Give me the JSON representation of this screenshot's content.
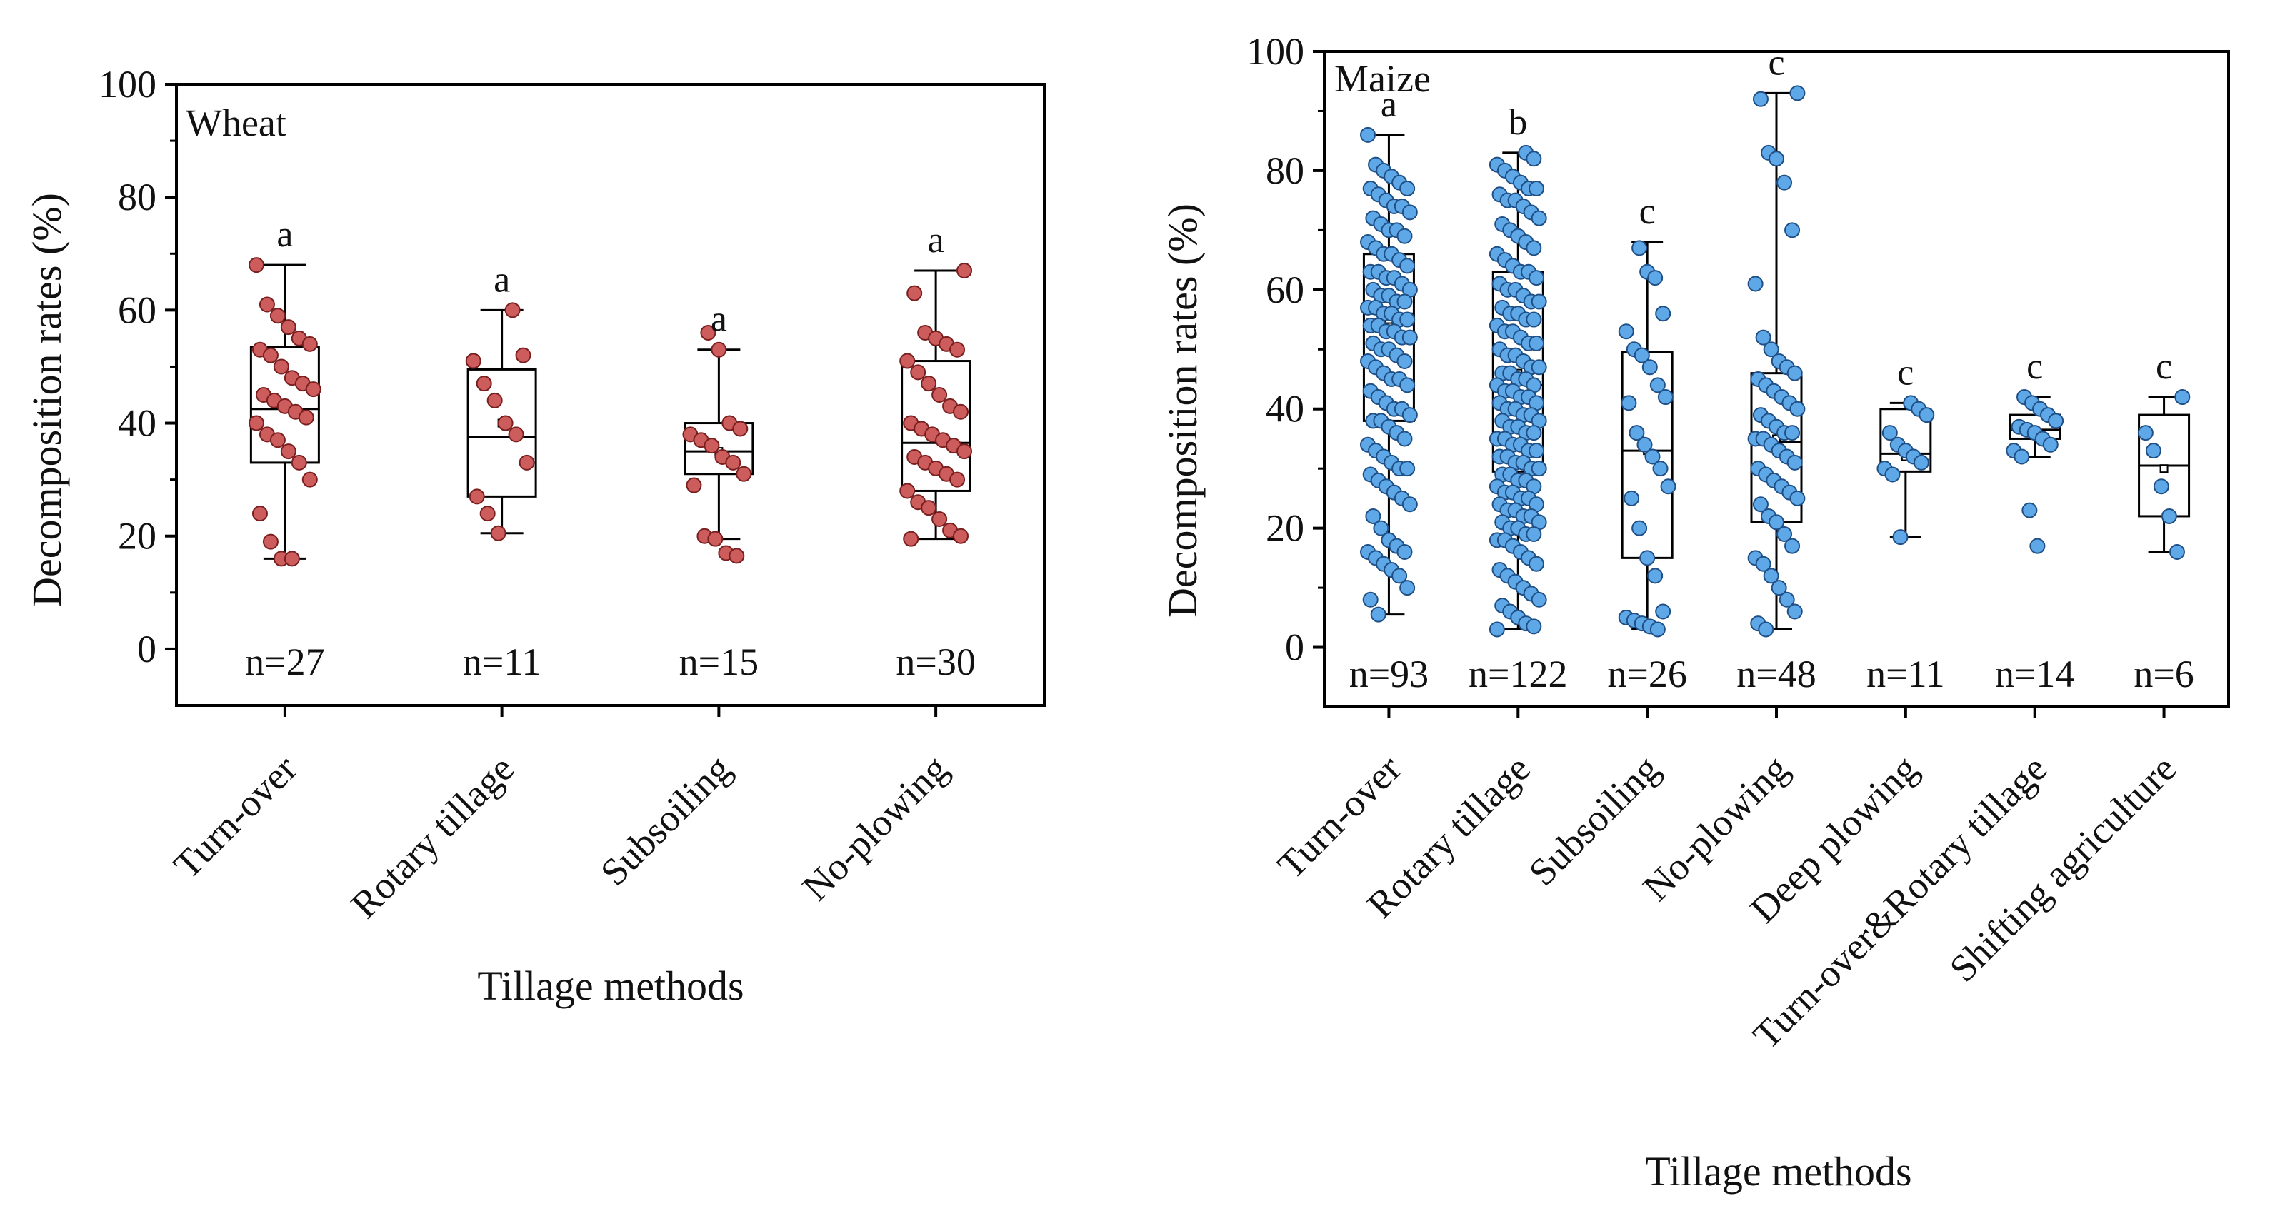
{
  "figure": {
    "colors": {
      "wheat_fill": "#cd5c5c",
      "wheat_stroke": "#7a1f1f",
      "maize_fill": "#5ea8e8",
      "maize_stroke": "#1f4f85",
      "xtitle": "#e02020",
      "frame": "#000000"
    }
  },
  "chart_data": [
    {
      "type": "box",
      "panel_label": "Wheat",
      "ylabel": "Decomposition rates (%)",
      "xlabel": "Tillage methods",
      "ylim": [
        -10,
        100
      ],
      "yticks": [
        0,
        20,
        40,
        60,
        80,
        100
      ],
      "categories": [
        "Turn-over",
        "Rotary tillage",
        "Subsoiling",
        "No-plowing"
      ],
      "boxes": [
        {
          "q1": 33,
          "median": 42.5,
          "q3": 53.5,
          "mean": 43,
          "whisker_low": 16,
          "whisker_high": 68,
          "letter": "a",
          "n_label": "n=27",
          "points": [
            68,
            61,
            59,
            57,
            55,
            54,
            53,
            52,
            50,
            48,
            47,
            46,
            45,
            44,
            43,
            42,
            41,
            40,
            38,
            37,
            35,
            33,
            30,
            24,
            19,
            16,
            16
          ]
        },
        {
          "q1": 27,
          "median": 37.5,
          "q3": 49.5,
          "mean": 40,
          "whisker_low": 20.5,
          "whisker_high": 60,
          "letter": "a",
          "n_label": "n=11",
          "points": [
            60,
            52,
            51,
            47,
            44,
            40,
            38,
            33,
            27,
            24,
            20.5
          ]
        },
        {
          "q1": 31,
          "median": 35,
          "q3": 40,
          "mean": 35,
          "whisker_low": 19.5,
          "whisker_high": 53,
          "letter": "a",
          "n_label": "n=15",
          "points": [
            56,
            53,
            40,
            39,
            38,
            37,
            36,
            34,
            33,
            31,
            29,
            20,
            19.5,
            17,
            16.5
          ]
        },
        {
          "q1": 28,
          "median": 36.5,
          "q3": 51,
          "mean": 37.5,
          "whisker_low": 19.5,
          "whisker_high": 67,
          "letter": "a",
          "n_label": "n=30",
          "points": [
            67,
            63,
            56,
            55,
            54,
            53,
            51,
            49,
            47,
            45,
            43,
            42,
            40,
            39,
            38,
            37,
            36,
            35,
            34,
            33,
            32,
            31,
            30,
            28,
            26,
            25,
            23,
            21,
            20,
            19.5
          ]
        }
      ]
    },
    {
      "type": "box",
      "panel_label": "Maize",
      "ylabel": "Decomposition rates (%)",
      "xlabel": "Tillage methods",
      "ylim": [
        -10,
        100
      ],
      "yticks": [
        0,
        20,
        40,
        60,
        80,
        100
      ],
      "categories": [
        "Turn-over",
        "Rotary tillage",
        "Subsoiling",
        "No-plowing",
        "Deep plowing",
        "Turn-over&Rotary tillage",
        "Shifting agriculture"
      ],
      "boxes": [
        {
          "q1": 38,
          "median": 56,
          "q3": 66,
          "mean": 55,
          "whisker_low": 5.5,
          "whisker_high": 86,
          "letter": "a",
          "n_label": "n=93",
          "points": [
            86,
            81,
            80,
            79,
            78,
            77,
            77,
            76,
            75,
            74,
            74,
            73,
            72,
            71,
            70,
            70,
            69,
            68,
            67,
            66,
            66,
            65,
            64,
            63,
            63,
            62,
            62,
            61,
            60,
            60,
            59,
            59,
            58,
            58,
            57,
            57,
            56,
            56,
            55,
            55,
            54,
            54,
            53,
            53,
            52,
            52,
            51,
            50,
            50,
            49,
            48,
            48,
            47,
            46,
            45,
            45,
            44,
            43,
            42,
            41,
            40,
            40,
            39,
            38,
            38,
            37,
            36,
            35,
            34,
            33,
            32,
            31,
            30,
            30,
            29,
            28,
            27,
            26,
            25,
            24,
            22,
            20,
            18,
            17,
            16,
            16,
            15,
            14,
            13,
            12,
            10,
            8,
            5.5
          ]
        },
        {
          "q1": 29.5,
          "median": 44,
          "q3": 63,
          "mean": 46,
          "whisker_low": 3,
          "whisker_high": 83,
          "letter": "b",
          "n_label": "n=122",
          "points": [
            83,
            82,
            81,
            80,
            79,
            78,
            77,
            77,
            76,
            75,
            75,
            74,
            73,
            72,
            71,
            70,
            69,
            68,
            67,
            66,
            65,
            64,
            63,
            63,
            62,
            61,
            60,
            60,
            59,
            58,
            58,
            57,
            56,
            56,
            55,
            55,
            54,
            53,
            53,
            52,
            51,
            51,
            50,
            49,
            49,
            48,
            47,
            47,
            46,
            46,
            45,
            45,
            44,
            44,
            43,
            43,
            42,
            42,
            41,
            41,
            40,
            40,
            39,
            39,
            38,
            38,
            37,
            37,
            36,
            36,
            35,
            35,
            34,
            34,
            33,
            33,
            32,
            32,
            31,
            31,
            30,
            30,
            29,
            29,
            28,
            28,
            27,
            27,
            26,
            26,
            25,
            25,
            24,
            24,
            23,
            23,
            22,
            22,
            21,
            21,
            20,
            20,
            19,
            19,
            18,
            18,
            17,
            16,
            15,
            14,
            13,
            12,
            11,
            10,
            9,
            8,
            7,
            6,
            5,
            4,
            3.5,
            3
          ]
        },
        {
          "q1": 15,
          "median": 33,
          "q3": 49.5,
          "mean": 33,
          "whisker_low": 3,
          "whisker_high": 68,
          "letter": "c",
          "n_label": "n=26",
          "points": [
            67,
            63,
            62,
            56,
            53,
            50,
            49,
            47,
            44,
            42,
            41,
            36,
            34,
            32,
            30,
            27,
            25,
            20,
            15,
            12,
            6,
            5,
            4.5,
            4,
            3.5,
            3
          ]
        },
        {
          "q1": 21,
          "median": 34.5,
          "q3": 46,
          "mean": 35,
          "whisker_low": 3,
          "whisker_high": 93,
          "letter": "c",
          "n_label": "n=48",
          "points": [
            93,
            92,
            83,
            82,
            78,
            70,
            61,
            52,
            50,
            48,
            47,
            46,
            45,
            44,
            43,
            42,
            41,
            40,
            39,
            38,
            37,
            36,
            36,
            35,
            35,
            34,
            33,
            32,
            31,
            30,
            29,
            28,
            27,
            26,
            25,
            24,
            22,
            21,
            19,
            17,
            15,
            14,
            12,
            10,
            8,
            6,
            4,
            3
          ]
        },
        {
          "q1": 29.5,
          "median": 32.5,
          "q3": 40,
          "mean": 32,
          "whisker_low": 18.5,
          "whisker_high": 41,
          "letter": "c",
          "n_label": "n=11",
          "points": [
            41,
            40,
            39,
            36,
            34,
            33,
            32,
            31,
            30,
            29,
            18.5
          ]
        },
        {
          "q1": 35,
          "median": 36.5,
          "q3": 39,
          "mean": 36,
          "whisker_low": 32,
          "whisker_high": 42,
          "letter": "c",
          "n_label": "n=14",
          "points": [
            42,
            41,
            40,
            39,
            38,
            37,
            36.5,
            36,
            35,
            34,
            33,
            32,
            23,
            17
          ]
        },
        {
          "q1": 22,
          "median": 30.5,
          "q3": 39,
          "mean": 30,
          "whisker_low": 16,
          "whisker_high": 42,
          "letter": "c",
          "n_label": "n=6",
          "points": [
            42,
            36,
            33,
            27,
            22,
            16
          ]
        }
      ]
    }
  ]
}
